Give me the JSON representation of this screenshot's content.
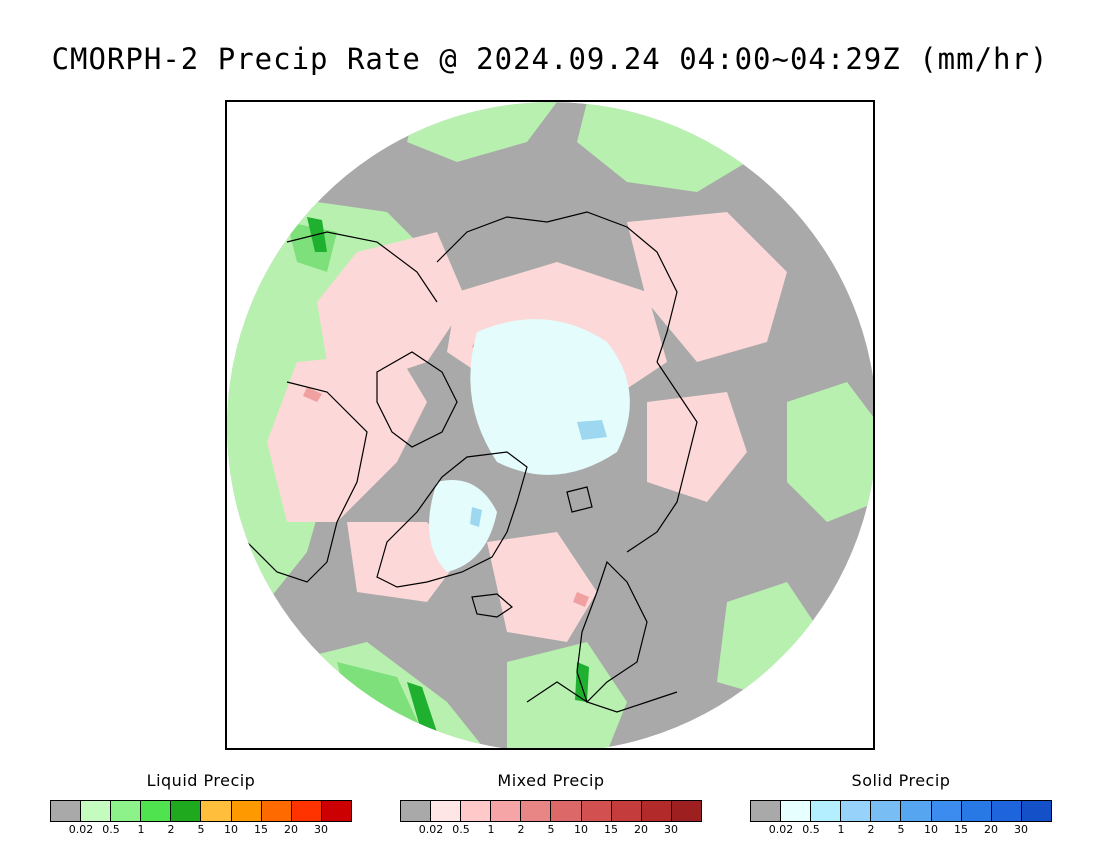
{
  "title": "CMORPH-2 Precip Rate @ 2024.09.24 04:00~04:29Z (mm/hr)",
  "map": {
    "projection": "north polar stereographic",
    "colors": {
      "no_precip": "#a9a9a9",
      "liquid_light": "#b8f0b0",
      "liquid_mid": "#7ee07a",
      "liquid_heavy": "#20b030",
      "mixed_light": "#fcd8d8",
      "mixed_mid": "#f0a0a0",
      "solid_light": "#e4fcfc",
      "solid_mid": "#9ed8f0",
      "coastline": "#000000"
    }
  },
  "legends": [
    {
      "title": "Liquid Precip",
      "colors": [
        "#a9a9a9",
        "#c4fbbf",
        "#8ef28a",
        "#4fe34f",
        "#1fa91f",
        "#ffbf3c",
        "#ff9900",
        "#ff6a00",
        "#ff3300",
        "#cc0000"
      ],
      "ticks": [
        "0.02",
        "0.5",
        "1",
        "2",
        "5",
        "10",
        "15",
        "20",
        "30"
      ]
    },
    {
      "title": "Mixed Precip",
      "colors": [
        "#a9a9a9",
        "#ffe6e6",
        "#ffc9c9",
        "#f5a5a5",
        "#e88585",
        "#dd6868",
        "#d25050",
        "#c43c3c",
        "#b32a2a",
        "#9e1f1f"
      ],
      "ticks": [
        "0.02",
        "0.5",
        "1",
        "2",
        "5",
        "10",
        "15",
        "20",
        "30"
      ]
    },
    {
      "title": "Solid Precip",
      "colors": [
        "#a9a9a9",
        "#e6ffff",
        "#b4efff",
        "#96d2fa",
        "#78bef5",
        "#55a5f0",
        "#3c8cf0",
        "#2878e6",
        "#1e64dc",
        "#1450c8"
      ],
      "ticks": [
        "0.02",
        "0.5",
        "1",
        "2",
        "5",
        "10",
        "15",
        "20",
        "30"
      ]
    }
  ]
}
